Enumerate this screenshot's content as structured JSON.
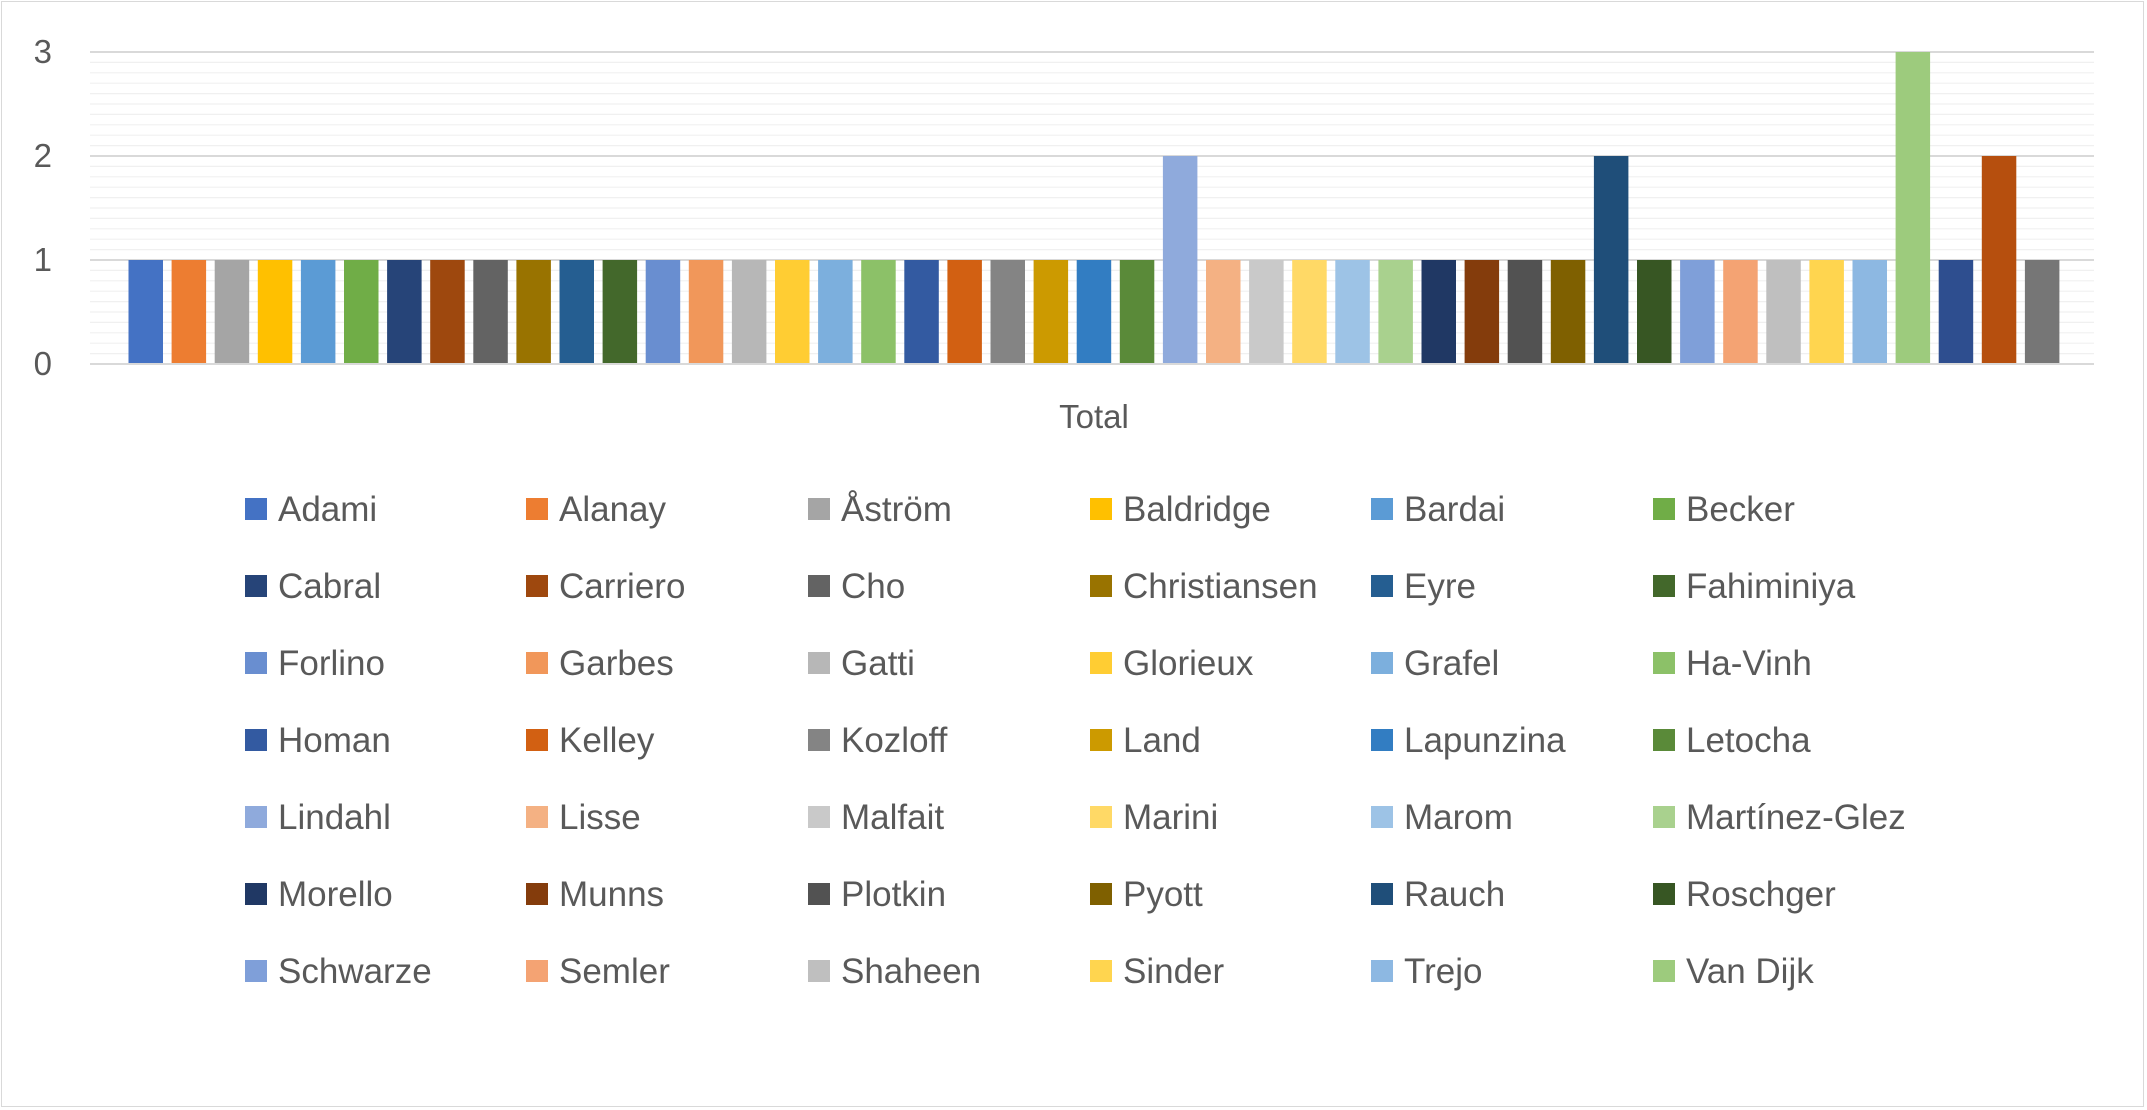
{
  "chart_data": {
    "type": "bar",
    "categories": [
      "Total"
    ],
    "ylim": [
      0,
      3
    ],
    "yticks": [
      0,
      1,
      2,
      3
    ],
    "grid": "on",
    "legend_position": "bottom",
    "series": [
      {
        "name": "Adami",
        "values": [
          1
        ],
        "color": "#4472C4"
      },
      {
        "name": "Alanay",
        "values": [
          1
        ],
        "color": "#ED7D31"
      },
      {
        "name": "Åström",
        "values": [
          1
        ],
        "color": "#A5A5A5"
      },
      {
        "name": "Baldridge",
        "values": [
          1
        ],
        "color": "#FFC000"
      },
      {
        "name": "Bardai",
        "values": [
          1
        ],
        "color": "#5B9BD5"
      },
      {
        "name": "Becker",
        "values": [
          1
        ],
        "color": "#70AD47"
      },
      {
        "name": "Cabral",
        "values": [
          1
        ],
        "color": "#264478"
      },
      {
        "name": "Carriero",
        "values": [
          1
        ],
        "color": "#9E480E"
      },
      {
        "name": "Cho",
        "values": [
          1
        ],
        "color": "#636363"
      },
      {
        "name": "Christiansen",
        "values": [
          1
        ],
        "color": "#997300"
      },
      {
        "name": "Eyre",
        "values": [
          1
        ],
        "color": "#255E91"
      },
      {
        "name": "Fahiminiya",
        "values": [
          1
        ],
        "color": "#43682B"
      },
      {
        "name": "Forlino",
        "values": [
          1
        ],
        "color": "#698ED0"
      },
      {
        "name": "Garbes",
        "values": [
          1
        ],
        "color": "#F1975A"
      },
      {
        "name": "Gatti",
        "values": [
          1
        ],
        "color": "#B7B7B7"
      },
      {
        "name": "Glorieux",
        "values": [
          1
        ],
        "color": "#FFCD33"
      },
      {
        "name": "Grafel",
        "values": [
          1
        ],
        "color": "#7CAFDD"
      },
      {
        "name": "Ha-Vinh",
        "values": [
          1
        ],
        "color": "#8CC168"
      },
      {
        "name": "Homan",
        "values": [
          1
        ],
        "color": "#335AA1"
      },
      {
        "name": "Kelley",
        "values": [
          1
        ],
        "color": "#D26012"
      },
      {
        "name": "Kozloff",
        "values": [
          1
        ],
        "color": "#848484"
      },
      {
        "name": "Land",
        "values": [
          1
        ],
        "color": "#CC9A00"
      },
      {
        "name": "Lapunzina",
        "values": [
          1
        ],
        "color": "#327DC2"
      },
      {
        "name": "Letocha",
        "values": [
          1
        ],
        "color": "#5A8A39"
      },
      {
        "name": "Lindahl",
        "values": [
          2
        ],
        "color": "#8FAADC"
      },
      {
        "name": "Lisse",
        "values": [
          1
        ],
        "color": "#F4B183"
      },
      {
        "name": "Malfait",
        "values": [
          1
        ],
        "color": "#C9C9C9"
      },
      {
        "name": "Marini",
        "values": [
          1
        ],
        "color": "#FFD966"
      },
      {
        "name": "Marom",
        "values": [
          1
        ],
        "color": "#9DC3E6"
      },
      {
        "name": "Martínez-Glez",
        "values": [
          1
        ],
        "color": "#A9D18E"
      },
      {
        "name": "Morello",
        "values": [
          1
        ],
        "color": "#203864"
      },
      {
        "name": "Munns",
        "values": [
          1
        ],
        "color": "#843C0C"
      },
      {
        "name": "Plotkin",
        "values": [
          1
        ],
        "color": "#525252"
      },
      {
        "name": "Pyott",
        "values": [
          1
        ],
        "color": "#7F6000"
      },
      {
        "name": "Rauch",
        "values": [
          2
        ],
        "color": "#1F4E79"
      },
      {
        "name": "Roschger",
        "values": [
          1
        ],
        "color": "#375623"
      },
      {
        "name": "Schwarze",
        "values": [
          1
        ],
        "color": "#7F9FD9"
      },
      {
        "name": "Semler",
        "values": [
          1
        ],
        "color": "#F4A373"
      },
      {
        "name": "Shaheen",
        "values": [
          1
        ],
        "color": "#BFBFBF"
      },
      {
        "name": "Sinder",
        "values": [
          1
        ],
        "color": "#FFD54F"
      },
      {
        "name": "Trejo",
        "values": [
          1
        ],
        "color": "#8DB8E2"
      },
      {
        "name": "Van Dijk",
        "values": [
          3
        ],
        "color": "#9DCB7D"
      },
      {
        "name": "",
        "values": [
          1
        ],
        "color": "#2E4E8F"
      },
      {
        "name": "",
        "values": [
          2
        ],
        "color": "#B64F0E"
      },
      {
        "name": "",
        "values": [
          1
        ],
        "color": "#767676"
      }
    ]
  }
}
